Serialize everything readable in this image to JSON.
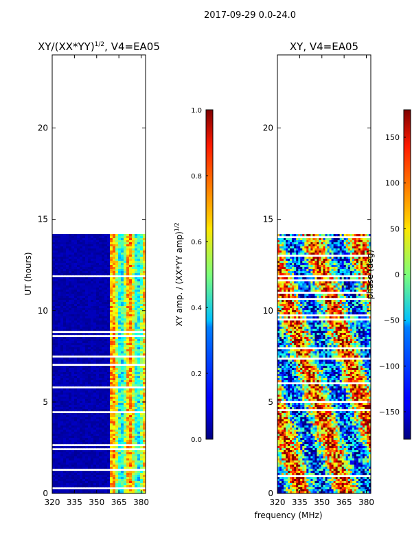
{
  "figure": {
    "suptitle": "2017-09-29 0.0-24.0",
    "xlabel": "frequency (MHz)"
  },
  "chart_data": [
    {
      "type": "heatmap",
      "title_prefix": "XY/(XX*YY)",
      "title_exponent": "1/2",
      "title_suffix": ", V4=EA05",
      "ylabel": "UT (hours)",
      "xlim": [
        320,
        383
      ],
      "ylim": [
        0,
        24
      ],
      "xticks": [
        320,
        335,
        350,
        365,
        380
      ],
      "yticks": [
        0,
        5,
        10,
        15,
        20
      ],
      "data_extent_hours": [
        0,
        14.2
      ],
      "colorbar": {
        "label": "XY amp. / (XX*YY amp)",
        "label_exponent": "1/2",
        "range": [
          0.0,
          1.0
        ],
        "ticks": [
          "0.0",
          "0.2",
          "0.4",
          "0.6",
          "0.8",
          "1.0"
        ],
        "colormap": "jet"
      }
    },
    {
      "type": "heatmap",
      "title": "XY, V4=EA05",
      "ylabel": "",
      "xlim": [
        320,
        383
      ],
      "ylim": [
        0,
        24
      ],
      "xticks": [
        320,
        335,
        350,
        365,
        380
      ],
      "yticks": [
        0,
        5,
        10,
        15,
        20
      ],
      "data_extent_hours": [
        0,
        14.2
      ],
      "colorbar": {
        "label": "phase (deg)",
        "range": [
          -180,
          180
        ],
        "ticks": [
          "−150",
          "−100",
          "−50",
          "0",
          "50",
          "100",
          "150"
        ],
        "tick_values": [
          -150,
          -100,
          -50,
          0,
          50,
          100,
          150
        ],
        "colormap": "jet"
      }
    }
  ]
}
